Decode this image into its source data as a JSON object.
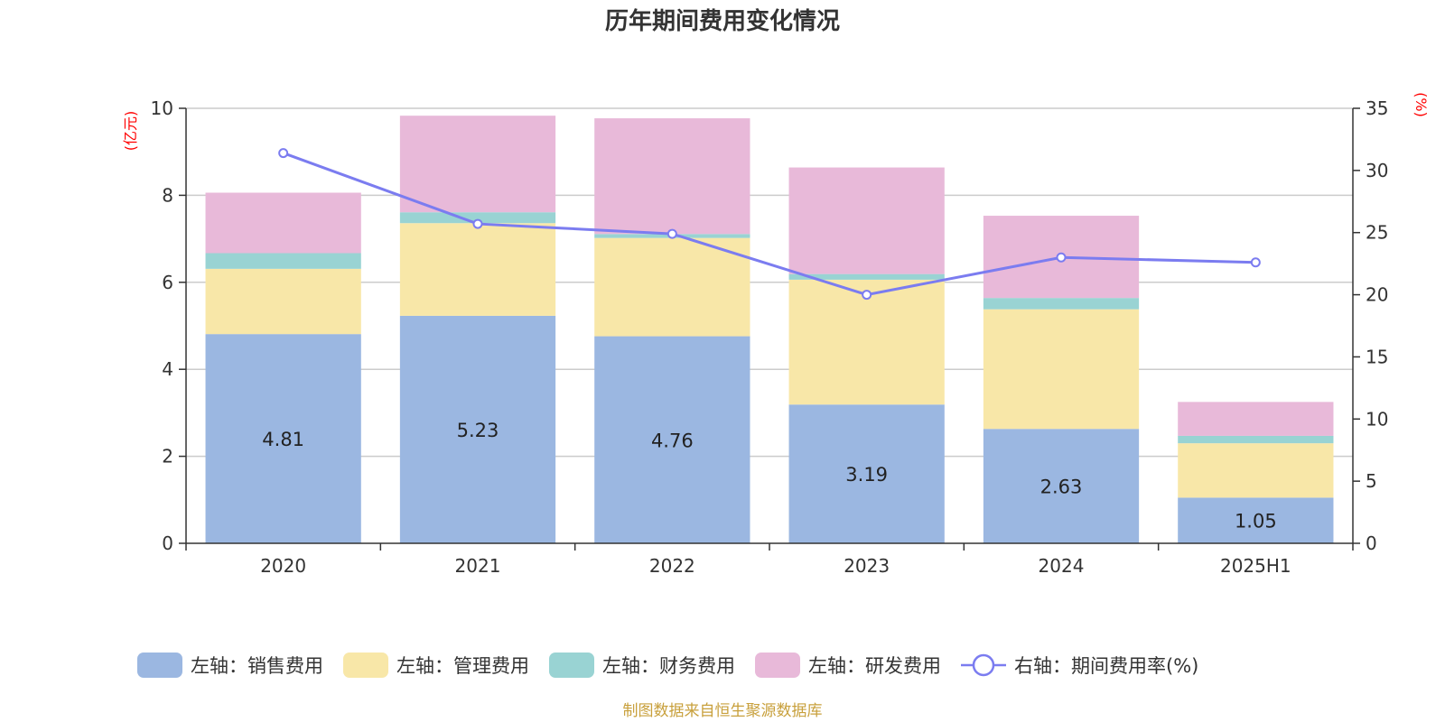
{
  "chart_data": {
    "type": "bar",
    "title": "历年期间费用变化情况",
    "left_unit": "(亿元)",
    "right_unit": "(%)",
    "categories": [
      "2020",
      "2021",
      "2022",
      "2023",
      "2024",
      "2025H1"
    ],
    "left_ylim": [
      0,
      10
    ],
    "left_ticks": [
      "0",
      "2",
      "4",
      "6",
      "8",
      "10"
    ],
    "right_ylim": [
      0,
      35
    ],
    "right_ticks": [
      "0",
      "5",
      "10",
      "15",
      "20",
      "25",
      "30",
      "35"
    ],
    "stacked": true,
    "grid": true,
    "legend_position": "bottom",
    "series": [
      {
        "name": "左轴：销售费用",
        "axis": "left",
        "type": "bar",
        "color": "#9bb7e1",
        "values": [
          4.81,
          5.23,
          4.76,
          3.19,
          2.63,
          1.05
        ],
        "labels": [
          "4.81",
          "5.23",
          "4.76",
          "3.19",
          "2.63",
          "1.05"
        ]
      },
      {
        "name": "左轴：管理费用",
        "axis": "left",
        "type": "bar",
        "color": "#f8e7a8",
        "values": [
          1.5,
          2.13,
          2.26,
          2.87,
          2.75,
          1.25
        ]
      },
      {
        "name": "左轴：财务费用",
        "axis": "left",
        "type": "bar",
        "color": "#99d3d3",
        "values": [
          0.36,
          0.25,
          0.09,
          0.13,
          0.26,
          0.17
        ]
      },
      {
        "name": "左轴：研发费用",
        "axis": "left",
        "type": "bar",
        "color": "#e8b9d9",
        "values": [
          1.39,
          2.22,
          2.66,
          2.45,
          1.89,
          0.78
        ]
      },
      {
        "name": "右轴：期间费用率(%)",
        "axis": "right",
        "type": "line",
        "color": "#7b7cf0",
        "values": [
          31.4,
          25.7,
          24.9,
          20.0,
          23.0,
          22.6
        ]
      }
    ]
  },
  "source": "制图数据来自恒生聚源数据库"
}
